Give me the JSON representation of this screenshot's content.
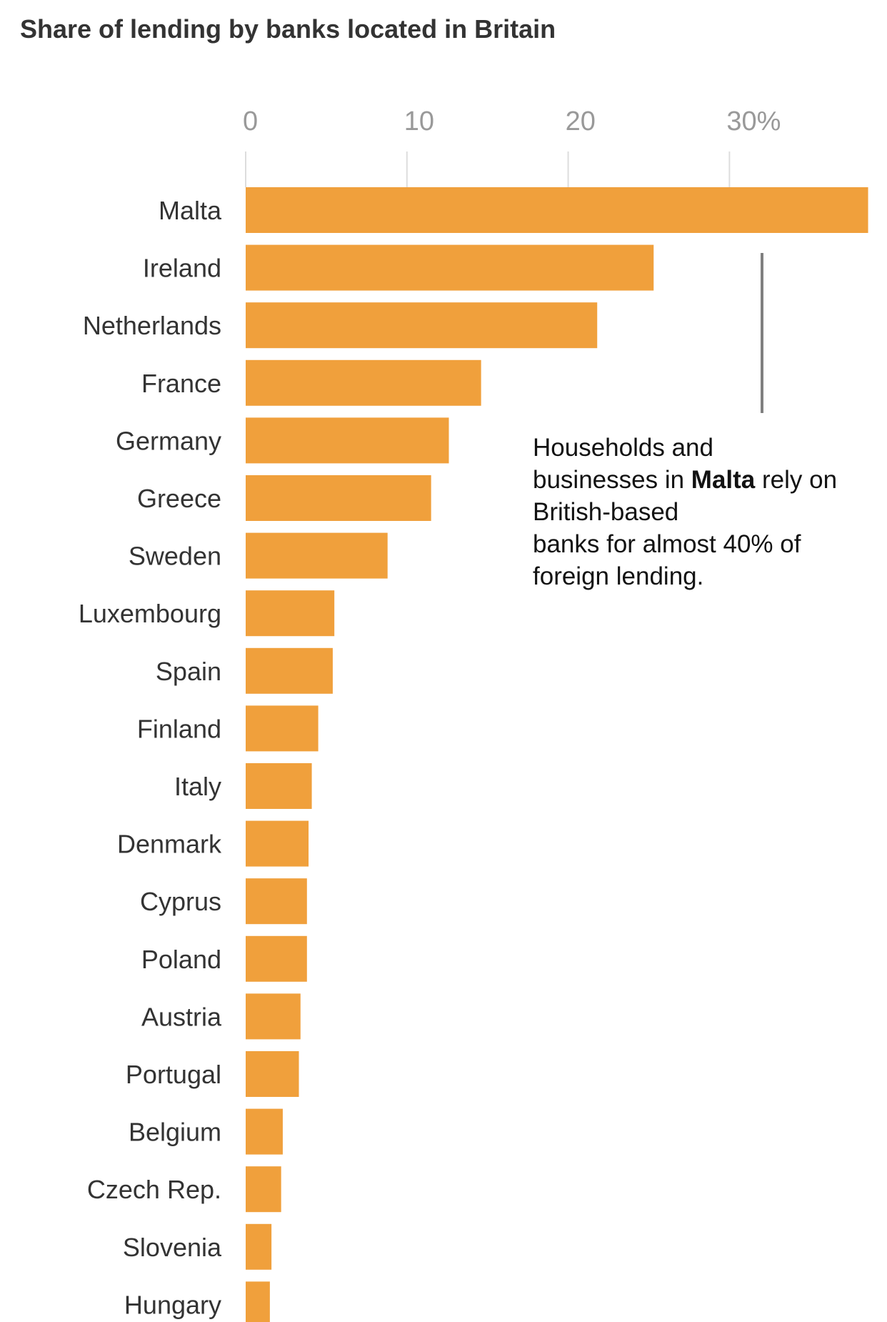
{
  "colors": {
    "bar": "#F0A03C"
  },
  "chart_data": {
    "type": "bar",
    "orientation": "horizontal",
    "title": "Share of lending by banks located in Britain",
    "xlim": [
      0,
      38
    ],
    "ticks": [
      {
        "value": 0,
        "label": "0"
      },
      {
        "value": 10,
        "label": "10"
      },
      {
        "value": 20,
        "label": "20"
      },
      {
        "value": 30,
        "label": "30%"
      }
    ],
    "grid": true,
    "categories": [
      "Malta",
      "Ireland",
      "Netherlands",
      "France",
      "Germany",
      "Greece",
      "Sweden",
      "Luxembourg",
      "Spain",
      "Finland",
      "Italy",
      "Denmark",
      "Cyprus",
      "Poland",
      "Austria",
      "Portugal",
      "Belgium",
      "Czech Rep.",
      "Slovenia",
      "Hungary"
    ],
    "values": [
      38.6,
      25.3,
      21.8,
      14.6,
      12.6,
      11.5,
      8.8,
      5.5,
      5.4,
      4.5,
      4.1,
      3.9,
      3.8,
      3.8,
      3.4,
      3.3,
      2.3,
      2.2,
      1.6,
      1.5
    ],
    "annotation": {
      "category": "Malta",
      "lines": [
        [
          {
            "text": "Households and",
            "bold": false
          }
        ],
        [
          {
            "text": "businesses in ",
            "bold": false
          },
          {
            "text": "Malta",
            "bold": true
          },
          {
            "text": " rely on",
            "bold": false
          }
        ],
        [
          {
            "text": "British-based",
            "bold": false
          }
        ],
        [
          {
            "text": "banks for almost 40% of",
            "bold": false
          }
        ],
        [
          {
            "text": "foreign lending.",
            "bold": false
          }
        ]
      ]
    }
  }
}
